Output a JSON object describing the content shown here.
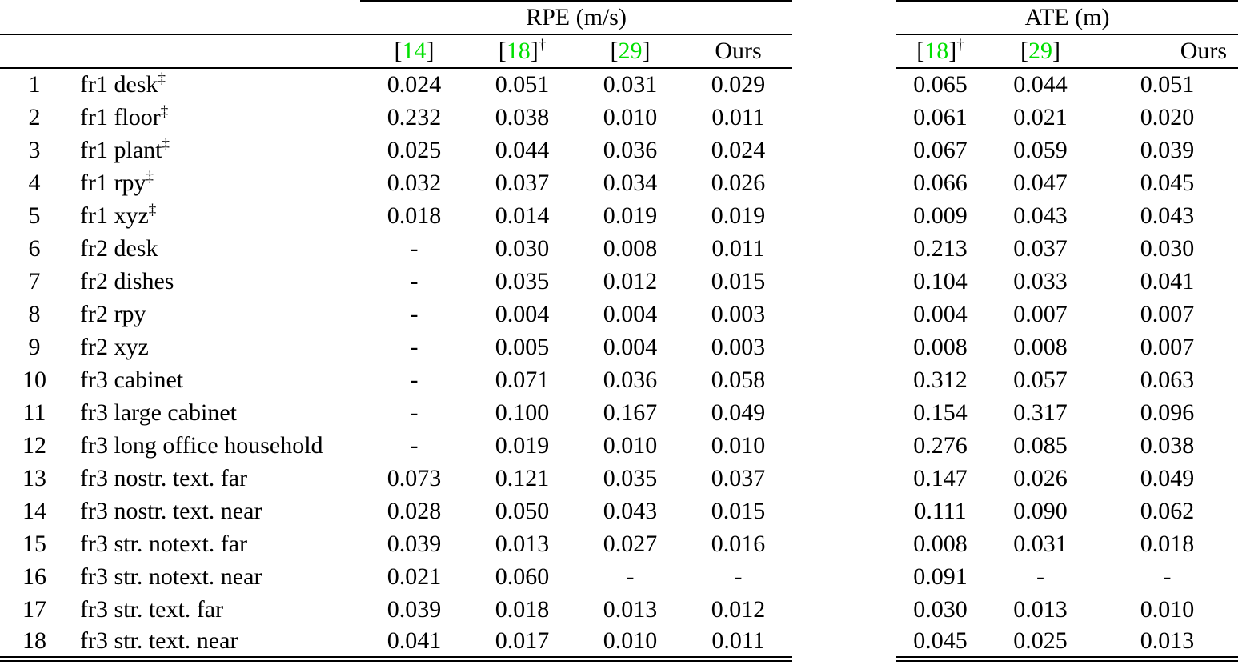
{
  "table": {
    "rpe_title": "RPE (m/s)",
    "ate_title": "ATE (m)",
    "rpe_header": [
      {
        "type": "cite",
        "num": "14",
        "sup": ""
      },
      {
        "type": "cite",
        "num": "18",
        "sup": "†"
      },
      {
        "type": "cite",
        "num": "29",
        "sup": ""
      },
      {
        "type": "text",
        "label": "Ours",
        "sup": ""
      }
    ],
    "ate_header": [
      {
        "type": "cite",
        "num": "18",
        "sup": "†"
      },
      {
        "type": "cite",
        "num": "29",
        "sup": ""
      },
      {
        "type": "text",
        "label": "Ours",
        "sup": ""
      }
    ],
    "rows": [
      {
        "idx": "1",
        "name": "fr1 desk",
        "name_sup": "‡",
        "rpe": [
          {
            "v": "0.024",
            "bold": true
          },
          {
            "v": "0.051"
          },
          {
            "v": "0.031"
          },
          {
            "v": "0.029"
          }
        ],
        "ate": [
          {
            "v": "0.065"
          },
          {
            "v": "0.044",
            "bold": true
          },
          {
            "v": "0.051"
          }
        ]
      },
      {
        "idx": "2",
        "name": "fr1 floor",
        "name_sup": "‡",
        "rpe": [
          {
            "v": "0.232"
          },
          {
            "v": "0.038"
          },
          {
            "v": "0.010",
            "bold": true
          },
          {
            "v": "0.011"
          }
        ],
        "ate": [
          {
            "v": "0.061"
          },
          {
            "v": "0.021"
          },
          {
            "v": "0.020",
            "bold": true
          }
        ]
      },
      {
        "idx": "3",
        "name": "fr1 plant",
        "name_sup": "‡",
        "rpe": [
          {
            "v": "0.025"
          },
          {
            "v": "0.044"
          },
          {
            "v": "0.036"
          },
          {
            "v": "0.024",
            "bold": true
          }
        ],
        "ate": [
          {
            "v": "0.067"
          },
          {
            "v": "0.059"
          },
          {
            "v": "0.039",
            "bold": true
          }
        ]
      },
      {
        "idx": "4",
        "name": "fr1 rpy",
        "name_sup": "‡",
        "rpe": [
          {
            "v": "0.032"
          },
          {
            "v": "0.037"
          },
          {
            "v": "0.034"
          },
          {
            "v": "0.026",
            "bold": true
          }
        ],
        "ate": [
          {
            "v": "0.066"
          },
          {
            "v": "0.047"
          },
          {
            "v": "0.045",
            "bold": true
          }
        ]
      },
      {
        "idx": "5",
        "name": "fr1 xyz",
        "name_sup": "‡",
        "rpe": [
          {
            "v": "0.018"
          },
          {
            "v": "0.014",
            "bold": true
          },
          {
            "v": "0.019"
          },
          {
            "v": "0.019"
          }
        ],
        "ate": [
          {
            "v": "0.009",
            "bold": true
          },
          {
            "v": "0.043"
          },
          {
            "v": "0.043"
          }
        ]
      },
      {
        "idx": "6",
        "name": "fr2 desk",
        "name_sup": "",
        "rpe": [
          {
            "v": "-"
          },
          {
            "v": "0.030"
          },
          {
            "v": "0.008",
            "bold": true
          },
          {
            "v": "0.011"
          }
        ],
        "ate": [
          {
            "v": "0.213"
          },
          {
            "v": "0.037"
          },
          {
            "v": "0.030",
            "bold": true
          }
        ]
      },
      {
        "idx": "7",
        "name": "fr2 dishes",
        "name_sup": "",
        "rpe": [
          {
            "v": "-"
          },
          {
            "v": "0.035"
          },
          {
            "v": "0.012",
            "bold": true
          },
          {
            "v": "0.015"
          }
        ],
        "ate": [
          {
            "v": "0.104"
          },
          {
            "v": "0.033",
            "bold": true
          },
          {
            "v": "0.041"
          }
        ]
      },
      {
        "idx": "8",
        "name": "fr2 rpy",
        "name_sup": "",
        "rpe": [
          {
            "v": "-"
          },
          {
            "v": "0.004"
          },
          {
            "v": "0.004"
          },
          {
            "v": "0.003",
            "bold": true
          }
        ],
        "ate": [
          {
            "v": "0.004",
            "bold": true
          },
          {
            "v": "0.007"
          },
          {
            "v": "0.007"
          }
        ]
      },
      {
        "idx": "9",
        "name": "fr2 xyz",
        "name_sup": "",
        "rpe": [
          {
            "v": "-"
          },
          {
            "v": "0.005"
          },
          {
            "v": "0.004"
          },
          {
            "v": "0.003",
            "bold": true
          }
        ],
        "ate": [
          {
            "v": "0.008"
          },
          {
            "v": "0.008"
          },
          {
            "v": "0.007",
            "bold": true
          }
        ]
      },
      {
        "idx": "10",
        "name": "fr3 cabinet",
        "name_sup": "",
        "rpe": [
          {
            "v": "-"
          },
          {
            "v": "0.071"
          },
          {
            "v": "0.036",
            "bold": true
          },
          {
            "v": "0.058"
          }
        ],
        "ate": [
          {
            "v": "0.312"
          },
          {
            "v": "0.057",
            "bold": true
          },
          {
            "v": "0.063"
          }
        ]
      },
      {
        "idx": "11",
        "name": "fr3 large cabinet",
        "name_sup": "",
        "rpe": [
          {
            "v": "-"
          },
          {
            "v": "0.100"
          },
          {
            "v": "0.167"
          },
          {
            "v": "0.049",
            "bold": true
          }
        ],
        "ate": [
          {
            "v": "0.154"
          },
          {
            "v": "0.317"
          },
          {
            "v": "0.096",
            "bold": true
          }
        ]
      },
      {
        "idx": "12",
        "name": "fr3 long office household",
        "name_sup": "",
        "rpe": [
          {
            "v": "-"
          },
          {
            "v": "0.019"
          },
          {
            "v": "0.010",
            "bold": true
          },
          {
            "v": "0.010",
            "bold": true
          }
        ],
        "ate": [
          {
            "v": "0.276"
          },
          {
            "v": "0.085"
          },
          {
            "v": "0.038",
            "bold": true
          }
        ]
      },
      {
        "idx": "13",
        "name": "fr3 nostr. text. far",
        "name_sup": "",
        "rpe": [
          {
            "v": "0.073"
          },
          {
            "v": "0.121"
          },
          {
            "v": "0.035",
            "bold": true
          },
          {
            "v": "0.037"
          }
        ],
        "ate": [
          {
            "v": "0.147"
          },
          {
            "v": "0.026",
            "bold": true
          },
          {
            "v": "0.049"
          }
        ]
      },
      {
        "idx": "14",
        "name": "fr3 nostr. text. near",
        "name_sup": "",
        "rpe": [
          {
            "v": "0.028"
          },
          {
            "v": "0.050"
          },
          {
            "v": "0.043"
          },
          {
            "v": "0.015",
            "bold": true
          }
        ],
        "ate": [
          {
            "v": "0.111"
          },
          {
            "v": "0.090"
          },
          {
            "v": "0.062",
            "bold": true
          }
        ]
      },
      {
        "idx": "15",
        "name": "fr3 str. notext. far",
        "name_sup": "",
        "rpe": [
          {
            "v": "0.039"
          },
          {
            "v": "0.013",
            "bold": true
          },
          {
            "v": "0.027"
          },
          {
            "v": "0.016"
          }
        ],
        "ate": [
          {
            "v": "0.008",
            "bold": true
          },
          {
            "v": "0.031"
          },
          {
            "v": "0.018"
          }
        ]
      },
      {
        "idx": "16",
        "name": "fr3 str. notext. near",
        "name_sup": "",
        "rpe": [
          {
            "v": "0.021",
            "bold": true
          },
          {
            "v": "0.060"
          },
          {
            "v": "-"
          },
          {
            "v": "-"
          }
        ],
        "ate": [
          {
            "v": "0.091",
            "bold": true
          },
          {
            "v": "-"
          },
          {
            "v": "-"
          }
        ]
      },
      {
        "idx": "17",
        "name": "fr3 str. text. far",
        "name_sup": "",
        "rpe": [
          {
            "v": "0.039"
          },
          {
            "v": "0.018"
          },
          {
            "v": "0.013"
          },
          {
            "v": "0.012",
            "bold": true
          }
        ],
        "ate": [
          {
            "v": "0.030"
          },
          {
            "v": "0.013"
          },
          {
            "v": "0.010",
            "bold": true
          }
        ]
      },
      {
        "idx": "18",
        "name": "fr3 str. text. near",
        "name_sup": "",
        "rpe": [
          {
            "v": "0.041"
          },
          {
            "v": "0.017"
          },
          {
            "v": "0.010",
            "bold": true
          },
          {
            "v": "0.011"
          }
        ],
        "ate": [
          {
            "v": "0.045"
          },
          {
            "v": "0.025"
          },
          {
            "v": "0.013",
            "bold": true
          }
        ]
      }
    ]
  },
  "colors": {
    "citation_green": "#00e000",
    "text_black": "#000000",
    "background": "#ffffff"
  }
}
